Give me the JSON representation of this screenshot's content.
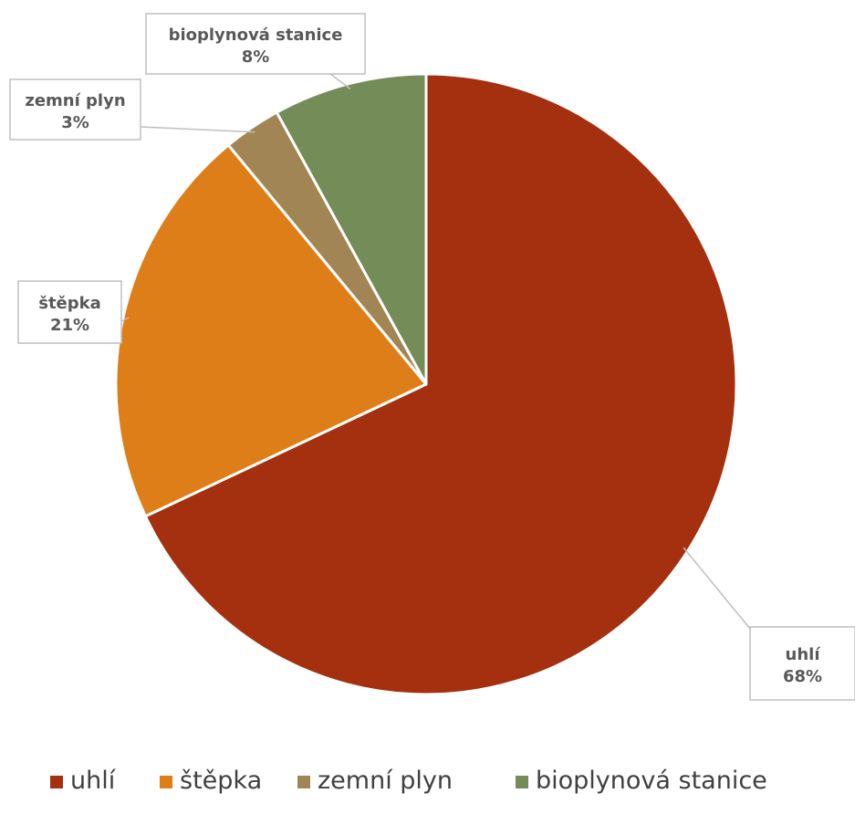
{
  "chart_data": {
    "type": "pie",
    "title": "",
    "slices": [
      {
        "name": "uhlí",
        "value": 68,
        "label": "68%",
        "color": "#A5300F"
      },
      {
        "name": "štěpka",
        "value": 21,
        "label": "21%",
        "color": "#DE7E18"
      },
      {
        "name": "zemní plyn",
        "value": 3,
        "label": "3%",
        "color": "#A28554"
      },
      {
        "name": "bioplynová stanice",
        "value": 8,
        "label": "8%",
        "color": "#748C57"
      }
    ],
    "legend": {
      "position": "bottom"
    },
    "start_angle_deg": 0,
    "direction": "clockwise"
  }
}
